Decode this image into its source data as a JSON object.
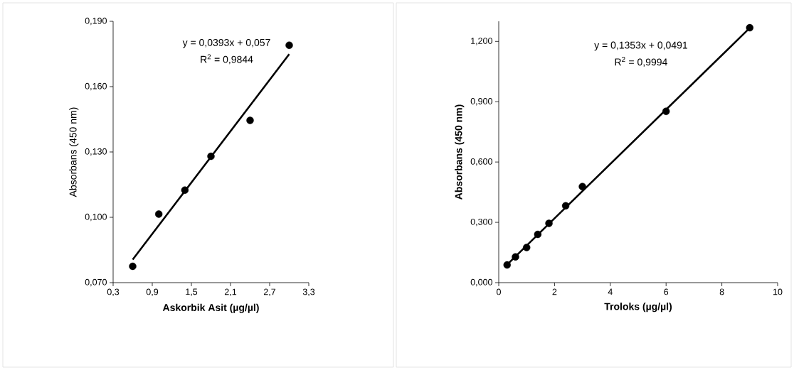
{
  "chart_data": [
    {
      "type": "scatter",
      "xlabel": "Askorbik Asit (µg/µl)",
      "ylabel": "Absorbans (450 nm)",
      "marker": "circle",
      "xlim": [
        0.3,
        3.3
      ],
      "ylim": [
        0.07,
        0.19
      ],
      "xticks": [
        {
          "value": 0.3,
          "label": "0,3"
        },
        {
          "value": 0.9,
          "label": "0,9"
        },
        {
          "value": 1.5,
          "label": "1,5"
        },
        {
          "value": 2.1,
          "label": "2,1"
        },
        {
          "value": 2.7,
          "label": "2,7"
        },
        {
          "value": 3.3,
          "label": "3,3"
        }
      ],
      "yticks": [
        {
          "value": 0.07,
          "label": "0,070"
        },
        {
          "value": 0.1,
          "label": "0,100"
        },
        {
          "value": 0.13,
          "label": "0,130"
        },
        {
          "value": 0.16,
          "label": "0,160"
        },
        {
          "value": 0.19,
          "label": "0,190"
        }
      ],
      "x": [
        0.6,
        1.0,
        1.4,
        1.8,
        2.4,
        3.0
      ],
      "series": [
        {
          "color": "#000000",
          "values": [
            0.0775,
            0.1015,
            0.1125,
            0.128,
            0.1445,
            0.179
          ]
        },
        {
          "type": "line",
          "marker": "none",
          "color": "#000000",
          "x": [
            0.6,
            3.0
          ],
          "values": [
            0.0806,
            0.1749
          ]
        }
      ],
      "annotations": [
        "y = 0,0393x + 0,057",
        "R$^{2}$ = 0,9844"
      ]
    },
    {
      "type": "scatter",
      "xlabel": "Troloks (µg/µl)",
      "ylabel": "Absorbans (450 nm)",
      "marker": "circle",
      "xlim": [
        0,
        10
      ],
      "ylim": [
        0,
        1.3
      ],
      "xticks": [
        0,
        2,
        4,
        6,
        8,
        10
      ],
      "yticks": [
        {
          "value": 0,
          "label": "0,000"
        },
        {
          "value": 0.3,
          "label": "0,300"
        },
        {
          "value": 0.6,
          "label": "0,600"
        },
        {
          "value": 0.9,
          "label": "0,900"
        },
        {
          "value": 1.2,
          "label": "1,200"
        }
      ],
      "x": [
        0.3,
        0.6,
        1.0,
        1.4,
        1.8,
        2.4,
        3.0,
        6.0,
        9.0
      ],
      "series": [
        {
          "color": "#000000",
          "values": [
            0.088,
            0.128,
            0.175,
            0.24,
            0.295,
            0.382,
            0.478,
            0.852,
            1.268
          ]
        },
        {
          "type": "line",
          "marker": "none",
          "color": "#000000",
          "x": [
            0.3,
            9.0
          ],
          "values": [
            0.0897,
            1.2668
          ]
        }
      ],
      "annotations": [
        "y = 0,1353x + 0,0491",
        "R$^{2}$ = 0,9994"
      ]
    }
  ]
}
